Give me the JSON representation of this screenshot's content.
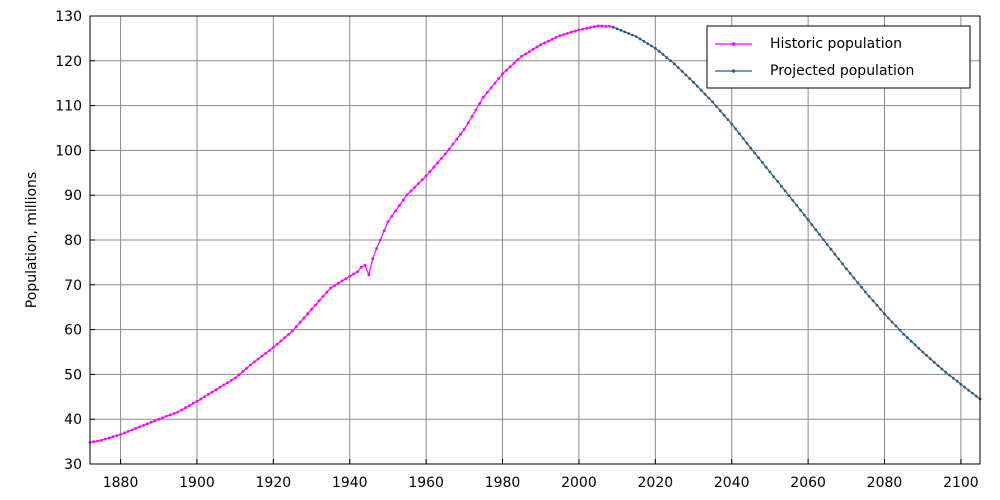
{
  "chart_data": {
    "type": "line",
    "title": "",
    "xlabel": "",
    "ylabel": "Population, millions",
    "xlim": [
      1872,
      2105
    ],
    "ylim": [
      30,
      130
    ],
    "grid": true,
    "legend_position": "top-right",
    "x_ticks": [
      1880,
      1900,
      1920,
      1940,
      1960,
      1980,
      2000,
      2020,
      2040,
      2060,
      2080,
      2100
    ],
    "y_ticks": [
      30,
      40,
      50,
      60,
      70,
      80,
      90,
      100,
      110,
      120,
      130
    ],
    "series": [
      {
        "name": "Historic population",
        "color": "#ff00ff",
        "x": [
          1872,
          1875,
          1880,
          1885,
          1890,
          1895,
          1900,
          1905,
          1910,
          1915,
          1920,
          1925,
          1930,
          1935,
          1940,
          1942,
          1943,
          1944,
          1945,
          1946,
          1947,
          1948,
          1950,
          1955,
          1960,
          1965,
          1970,
          1975,
          1980,
          1985,
          1990,
          1995,
          2000,
          2005,
          2008,
          2009
        ],
        "y": [
          34.8,
          35.3,
          36.6,
          38.3,
          40.0,
          41.6,
          44.0,
          46.6,
          49.2,
          52.8,
          56.0,
          59.7,
          64.5,
          69.3,
          71.9,
          72.9,
          73.9,
          74.4,
          72.2,
          75.8,
          78.1,
          80.0,
          84.1,
          90.1,
          94.3,
          99.2,
          104.7,
          111.9,
          117.1,
          121.0,
          123.6,
          125.6,
          126.9,
          127.8,
          127.7,
          127.5
        ]
      },
      {
        "name": "Projected population",
        "color": "#2e5e7e",
        "x": [
          2009,
          2015,
          2020,
          2025,
          2030,
          2035,
          2040,
          2045,
          2050,
          2055,
          2060,
          2065,
          2070,
          2075,
          2080,
          2085,
          2090,
          2095,
          2100,
          2105
        ],
        "y": [
          127.5,
          125.4,
          122.8,
          119.3,
          115.2,
          110.8,
          105.9,
          100.5,
          95.2,
          89.9,
          84.5,
          79.0,
          73.6,
          68.4,
          63.5,
          59.0,
          55.0,
          51.2,
          47.8,
          44.5
        ]
      }
    ]
  }
}
